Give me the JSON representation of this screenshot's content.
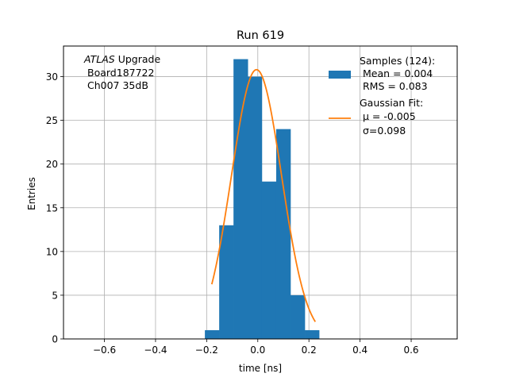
{
  "chart_data": {
    "type": "bar",
    "title": "Run 619",
    "xlabel": "time [ns]",
    "ylabel": "Entries",
    "xlim": [
      -0.76,
      0.78
    ],
    "ylim": [
      0,
      33.5
    ],
    "grid": true,
    "xticks": [
      -0.6,
      -0.4,
      -0.2,
      0.0,
      0.2,
      0.4,
      0.6
    ],
    "xtick_labels": [
      "−0.6",
      "−0.4",
      "−0.2",
      "0.0",
      "0.2",
      "0.4",
      "0.6"
    ],
    "yticks": [
      0,
      5,
      10,
      15,
      20,
      25,
      30
    ],
    "yticks_labels": [
      "0",
      "5",
      "10",
      "15",
      "20",
      "25",
      "30"
    ],
    "histogram": {
      "name": "Samples (124):",
      "color": "#1f77b4",
      "bin_edges": [
        -0.207,
        -0.151,
        -0.095,
        -0.039,
        0.016,
        0.072,
        0.128,
        0.184,
        0.24
      ],
      "bins": [
        {
          "x0": -0.207,
          "x1": -0.151,
          "value": 1
        },
        {
          "x0": -0.151,
          "x1": -0.095,
          "value": 13
        },
        {
          "x0": -0.095,
          "x1": -0.039,
          "value": 32
        },
        {
          "x0": -0.039,
          "x1": 0.016,
          "value": 30
        },
        {
          "x0": 0.016,
          "x1": 0.072,
          "value": 18
        },
        {
          "x0": 0.072,
          "x1": 0.128,
          "value": 24
        },
        {
          "x0": 0.128,
          "x1": 0.184,
          "value": 5
        },
        {
          "x0": 0.184,
          "x1": 0.24,
          "value": 1
        }
      ]
    },
    "fit": {
      "name": "Gaussian Fit:",
      "color": "#ff7f0e",
      "mu": -0.005,
      "sigma": 0.098,
      "amplitude": 30.8,
      "x_range": [
        -0.18,
        0.225
      ]
    },
    "legend": {
      "placement": "top-right",
      "samples_lines": [
        "Samples (124):",
        " Mean = 0.004",
        " RMS = 0.083"
      ],
      "fit_lines": [
        "Gaussian Fit:",
        " μ = -0.005",
        " σ=0.098"
      ]
    },
    "annotation": {
      "placement": "top-left",
      "line1_italic": "ATLAS",
      "line1_rest": " Upgrade",
      "line2": "Board187722",
      "line3": "Ch007 35dB"
    }
  }
}
